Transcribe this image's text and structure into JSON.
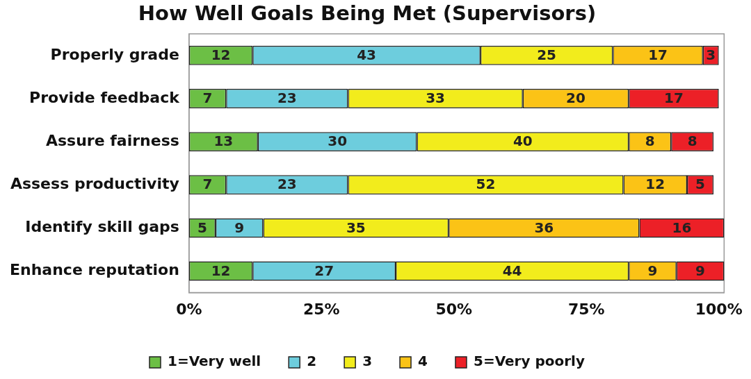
{
  "chart_data": {
    "type": "bar",
    "orientation": "horizontal",
    "stacked": true,
    "title": "How Well Goals Being Met (Supervisors)",
    "categories": [
      "Properly grade",
      "Provide feedback",
      "Assure fairness",
      "Assess productivity",
      "Identify skill gaps",
      "Enhance reputation"
    ],
    "series": [
      {
        "name": "1=Very well",
        "color": "#6cbf45",
        "values": [
          12,
          7,
          13,
          7,
          5,
          12
        ]
      },
      {
        "name": "2",
        "color": "#6dcddd",
        "values": [
          43,
          23,
          30,
          23,
          9,
          27
        ]
      },
      {
        "name": "3",
        "color": "#f2ec1c",
        "values": [
          25,
          33,
          40,
          52,
          35,
          44
        ]
      },
      {
        "name": "4",
        "color": "#fbc316",
        "values": [
          17,
          20,
          8,
          12,
          36,
          9
        ]
      },
      {
        "name": "5=Very poorly",
        "color": "#ec2027",
        "values": [
          3,
          17,
          8,
          5,
          16,
          9
        ]
      }
    ],
    "xlim": [
      0,
      101
    ],
    "xticks": [
      {
        "value": 0,
        "label": "0%"
      },
      {
        "value": 25,
        "label": "25%"
      },
      {
        "value": 50,
        "label": "50%"
      },
      {
        "value": 75,
        "label": "75%"
      },
      {
        "value": 100,
        "label": "100%"
      }
    ],
    "data_labels": true,
    "grid": false,
    "legend": "bottom"
  }
}
